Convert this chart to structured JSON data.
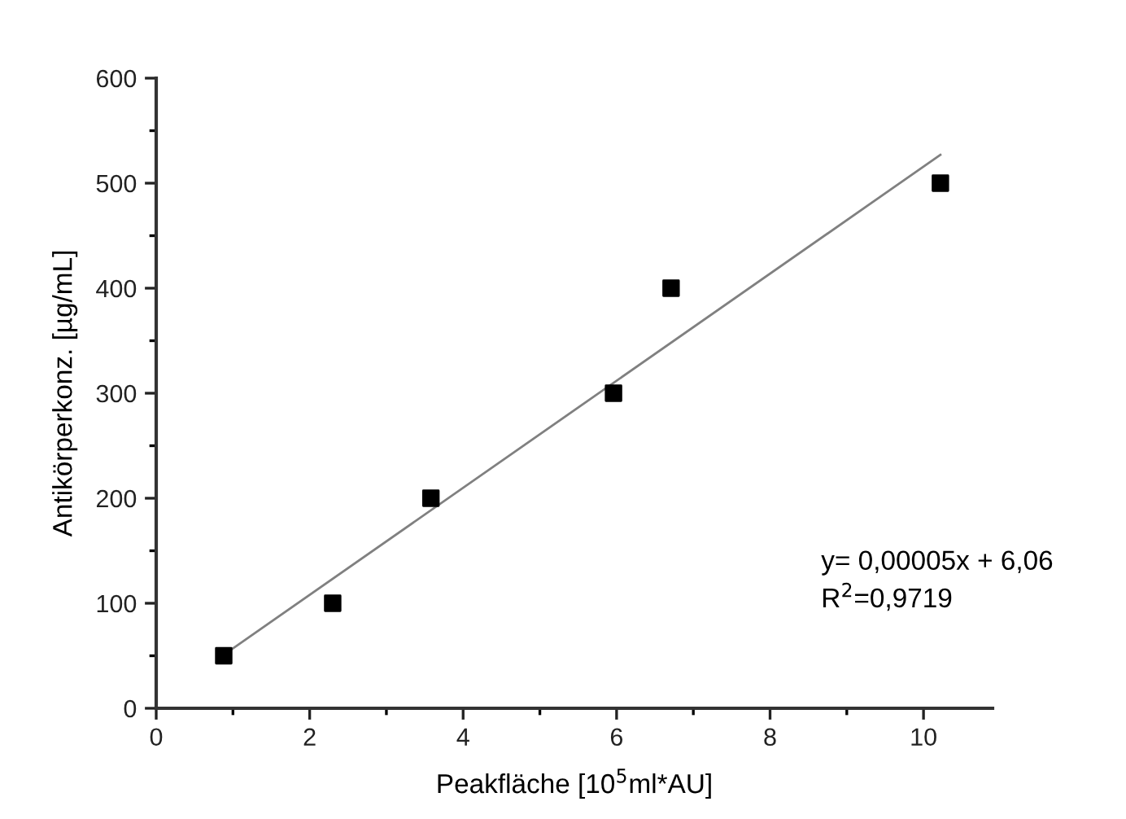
{
  "chart_data": {
    "type": "scatter",
    "xlabel": "Peakfläche [10$^{5}$ml*AU]",
    "ylabel": "Antikörperkonz. [µg/mL]",
    "series": [
      {
        "color": "#000000",
        "marker": "square",
        "x": [
          0.88,
          2.3,
          3.58,
          5.96,
          6.71,
          10.22
        ],
        "values": [
          50,
          100,
          200,
          300,
          400,
          500
        ]
      },
      {
        "type": "line",
        "color": "#808080",
        "marker": "none",
        "line_style": "solid",
        "x": [
          0.96,
          10.22
        ],
        "values": [
          55,
          527
        ]
      }
    ],
    "annotations": [
      "y= 0,00005x + 6,06",
      "R$^{2}$=0,9719"
    ],
    "xlim": [
      0,
      10.9
    ],
    "ylim": [
      0,
      600
    ],
    "xticks": [
      0,
      {
        "value": 1,
        "label": null
      },
      2,
      {
        "value": 3,
        "label": null
      },
      4,
      {
        "value": 5,
        "label": null
      },
      6,
      {
        "value": 7,
        "label": null
      },
      8,
      {
        "value": 9,
        "label": null
      },
      10
    ],
    "yticks": [
      0,
      {
        "value": 50,
        "label": null
      },
      100,
      {
        "value": 150,
        "label": null
      },
      200,
      {
        "value": 250,
        "label": null
      },
      300,
      {
        "value": 350,
        "label": null
      },
      400,
      {
        "value": 450,
        "label": null
      },
      500,
      {
        "value": 550,
        "label": null
      },
      600
    ],
    "grid": false,
    "legend": false
  }
}
